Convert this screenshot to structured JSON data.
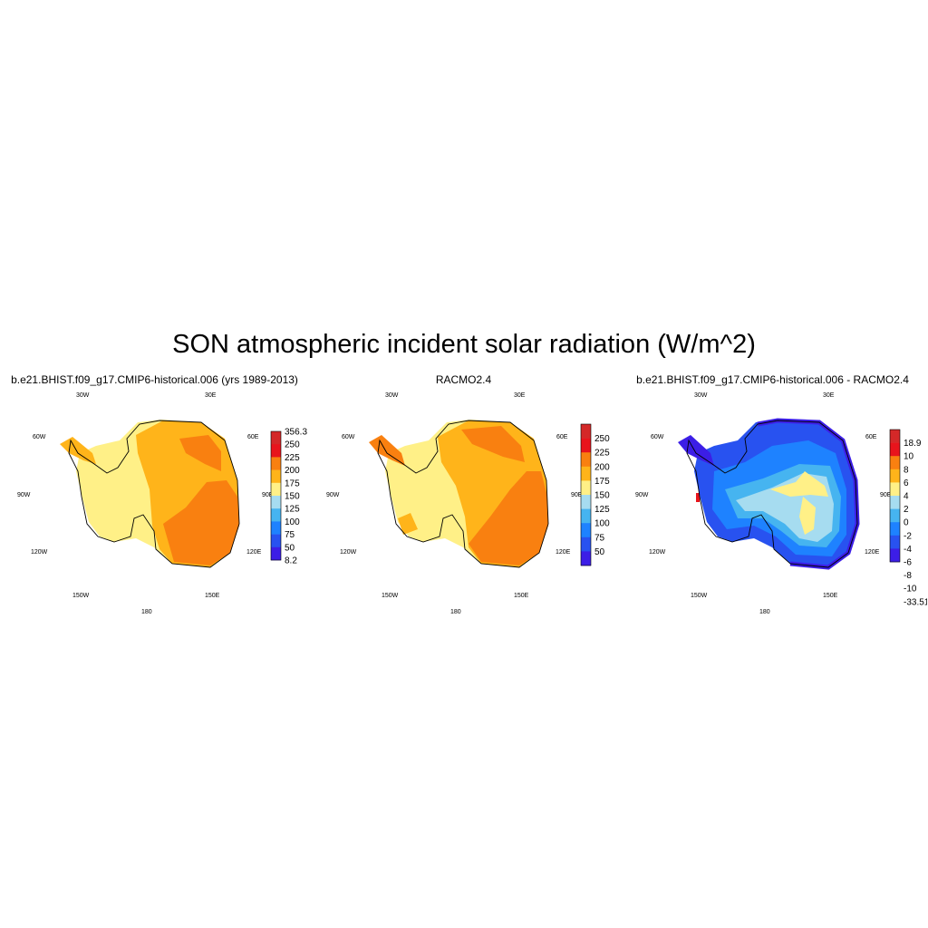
{
  "title": "SON atmospheric incident solar radiation (W/m^2)",
  "panels": [
    {
      "title": "b.e21.BHIST.f09_g17.CMIP6-historical.006 (yrs 1989-2013)",
      "colorbar": {
        "labels": [
          "356.3",
          "250",
          "225",
          "200",
          "175",
          "150",
          "125",
          "100",
          "75",
          "50",
          "8.2"
        ],
        "colors": [
          "#d42828",
          "#e8141c",
          "#f98010",
          "#ffb41a",
          "#fff087",
          "#a6dcf0",
          "#46b4f0",
          "#1e82ff",
          "#2852f0",
          "#3c1ee6"
        ]
      }
    },
    {
      "title": "RACMO2.4",
      "colorbar": {
        "labels": [
          "250",
          "225",
          "200",
          "175",
          "150",
          "125",
          "100",
          "75",
          "50"
        ],
        "colors": [
          "#d42828",
          "#e8141c",
          "#f98010",
          "#ffb41a",
          "#fff087",
          "#a6dcf0",
          "#46b4f0",
          "#1e82ff",
          "#2852f0",
          "#3c1ee6"
        ]
      }
    },
    {
      "title": "b.e21.BHIST.f09_g17.CMIP6-historical.006 - RACMO2.4",
      "colorbar": {
        "labels": [
          "18.9",
          "10",
          "8",
          "6",
          "4",
          "2",
          "0",
          "-2",
          "-4",
          "-6",
          "-8",
          "-10",
          "-33.51"
        ],
        "colors": [
          "#d42828",
          "#e8141c",
          "#f98010",
          "#ffb41a",
          "#fff087",
          "#a6dcf0",
          "#46b4f0",
          "#1e82ff",
          "#2852f0",
          "#3c1ee6"
        ]
      }
    }
  ],
  "map_labels": {
    "lon30w": "30W",
    "lon30e": "30E",
    "lon60w": "60W",
    "lon60e": "60E",
    "lon90w": "90W",
    "lon90e": "90E",
    "lon120w": "120W",
    "lon120e": "120E",
    "lon150w": "150W",
    "lon150e": "150E",
    "lon180": "180"
  },
  "palette": {
    "pale_yellow": "#fff087",
    "yellow_orange": "#ffb41a",
    "orange": "#f98010",
    "red": "#e8141c",
    "light_blue": "#a6dcf0",
    "sky_blue": "#46b4f0",
    "blue": "#1e82ff",
    "deep_blue": "#2852f0",
    "violet": "#3c1ee6"
  }
}
